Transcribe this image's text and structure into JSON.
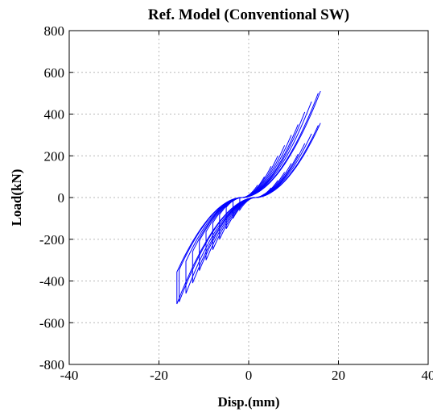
{
  "chart_data": {
    "type": "line",
    "title": "Ref. Model (Conventional SW)",
    "xlabel": "Disp.(mm)",
    "ylabel": "Load(kN)",
    "xlim": [
      -40,
      40
    ],
    "ylim": [
      -800,
      800
    ],
    "xticks": [
      -40,
      -20,
      0,
      20,
      40
    ],
    "yticks": [
      -800,
      -600,
      -400,
      -200,
      0,
      200,
      400,
      600,
      800
    ],
    "grid": true,
    "legend": "none",
    "series": [
      {
        "color": "#0000ff",
        "description_cycles": [
          {
            "amplitude_mm": 2,
            "peak_kN": 60
          },
          {
            "amplitude_mm": 3.5,
            "peak_kN": 100
          },
          {
            "amplitude_mm": 5,
            "peak_kN": 150
          },
          {
            "amplitude_mm": 6.5,
            "peak_kN": 200
          },
          {
            "amplitude_mm": 8,
            "peak_kN": 250
          },
          {
            "amplitude_mm": 9.5,
            "peak_kN": 300
          },
          {
            "amplitude_mm": 11,
            "peak_kN": 350
          },
          {
            "amplitude_mm": 12.5,
            "peak_kN": 410
          },
          {
            "amplitude_mm": 14,
            "peak_kN": 460
          },
          {
            "amplitude_mm": 15.5,
            "peak_kN": 500
          },
          {
            "amplitude_mm": 16,
            "peak_kN": 510
          }
        ],
        "residual_disp_mm": 2.5
      }
    ]
  }
}
